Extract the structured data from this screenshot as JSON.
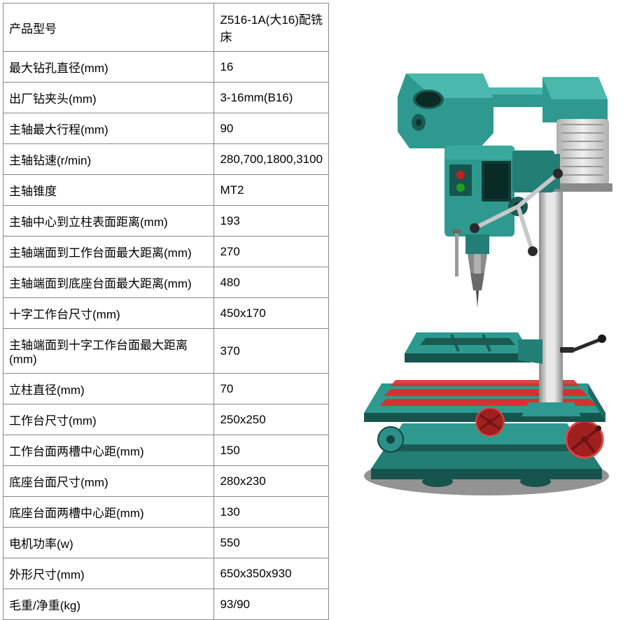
{
  "table": {
    "rows": [
      {
        "label": "产品型号",
        "value": "Z516-1A(大16)配铣床"
      },
      {
        "label": "最大钻孔直径(mm)",
        "value": "16"
      },
      {
        "label": "出厂钻夹头(mm)",
        "value": "3-16mm(B16)"
      },
      {
        "label": "主轴最大行程(mm)",
        "value": "90"
      },
      {
        "label": "主轴钻速(r/min)",
        "value": "280,700,1800,3100"
      },
      {
        "label": "主轴锥度",
        "value": "MT2"
      },
      {
        "label": "主轴中心到立柱表面距离(mm)",
        "value": "193"
      },
      {
        "label": "主轴端面到工作台面最大距离(mm)",
        "value": "270"
      },
      {
        "label": "主轴端面到底座台面最大距离(mm)",
        "value": "480"
      },
      {
        "label": "十字工作台尺寸(mm)",
        "value": "450x170"
      },
      {
        "label": "主轴端面到十字工作台面最大距离(mm)",
        "value": "370"
      },
      {
        "label": "立柱直径(mm)",
        "value": "70"
      },
      {
        "label": "工作台尺寸(mm)",
        "value": "250x250"
      },
      {
        "label": "工作台面两槽中心距(mm)",
        "value": "150"
      },
      {
        "label": "底座台面尺寸(mm)",
        "value": "280x230"
      },
      {
        "label": "底座台面两槽中心距(mm)",
        "value": "130"
      },
      {
        "label": "电机功率(w)",
        "value": "550"
      },
      {
        "label": "外形尺寸(mm)",
        "value": "650x350x930"
      },
      {
        "label": "毛重/净重(kg)",
        "value": "93/90"
      }
    ]
  },
  "machine": {
    "colors": {
      "body": "#2e9a8f",
      "body_dark": "#1f6b63",
      "body_light": "#4ab8ac",
      "motor": "#d8d8d8",
      "motor_dark": "#a8a8a8",
      "chuck": "#7a7a7a",
      "chuck_light": "#b8b8b8",
      "column": "#c0c0c0",
      "column_dark": "#808080",
      "table_top": "#2e9a8f",
      "slot_red": "#d83030",
      "handle": "#2a2a2a",
      "handle_bar": "#c8c8c8",
      "handwheel": "#d83030",
      "base": "#2e9a8f",
      "shadow": "#333333"
    }
  }
}
